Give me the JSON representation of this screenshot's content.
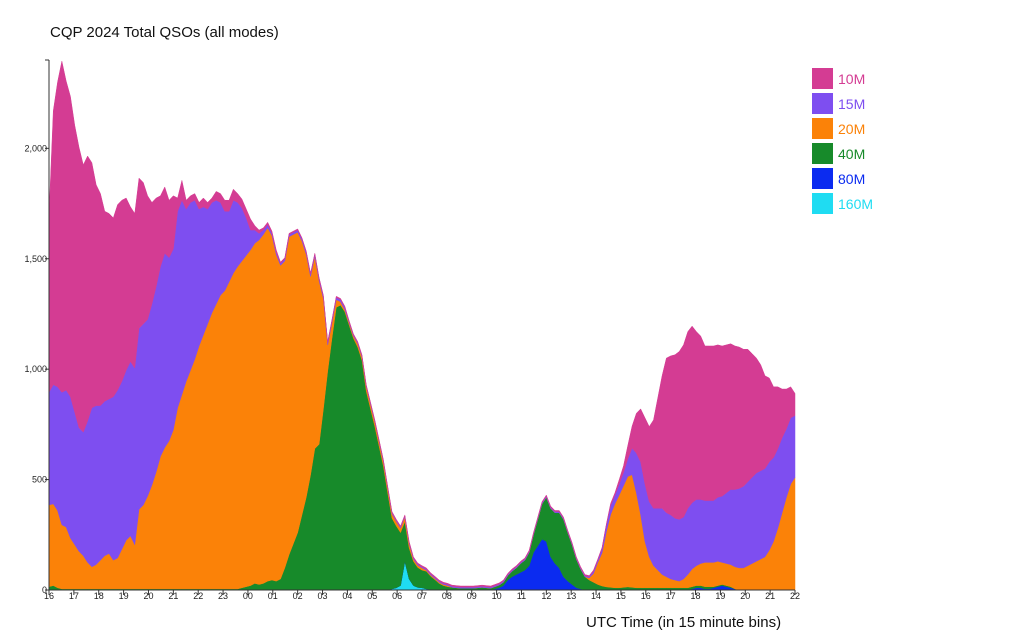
{
  "chart_data": {
    "type": "area",
    "stacked": true,
    "title": "CQP 2024 Total QSOs (all modes)",
    "xlabel": "UTC Time (in 15 minute bins)",
    "ylabel": "",
    "ylim": [
      0,
      2400
    ],
    "yticks": [
      0,
      500,
      1000,
      1500,
      2000
    ],
    "ytick_labels": [
      "0",
      "500",
      "1,000",
      "1,500",
      "2,000"
    ],
    "xtick_labels": [
      "16",
      "17",
      "18",
      "19",
      "20",
      "21",
      "22",
      "23",
      "00",
      "01",
      "02",
      "03",
      "04",
      "05",
      "06",
      "07",
      "08",
      "09",
      "10",
      "11",
      "12",
      "13",
      "14",
      "15",
      "16",
      "17",
      "18",
      "19",
      "20",
      "21",
      "22"
    ],
    "grid": false,
    "legend_position": "right",
    "series": [
      {
        "name": "160M",
        "color": "#1fdcf2",
        "values": [
          0,
          0,
          0,
          0,
          0,
          0,
          0,
          0,
          0,
          0,
          0,
          0,
          0,
          0,
          0,
          0,
          0,
          0,
          0,
          0,
          0,
          0,
          0,
          0,
          0,
          0,
          0,
          0,
          0,
          0,
          0,
          0,
          0,
          0,
          0,
          0,
          0,
          0,
          0,
          0,
          0,
          0,
          0,
          0,
          0,
          0,
          0,
          0,
          0,
          0,
          0,
          0,
          0,
          0,
          0,
          0,
          0,
          0,
          0,
          0,
          0,
          0,
          0,
          0,
          0,
          0,
          0,
          0,
          0,
          0,
          0,
          0,
          0,
          0,
          0,
          0,
          0,
          0,
          0,
          0,
          5,
          10,
          20,
          130,
          50,
          20,
          12,
          10,
          5,
          3,
          2,
          0,
          0,
          0,
          0,
          0,
          0,
          0,
          0,
          0,
          0,
          0,
          0,
          0,
          0,
          0,
          0,
          0,
          0,
          0,
          0,
          0,
          0,
          0,
          0,
          0,
          0,
          0,
          0,
          0,
          0,
          0,
          0,
          0,
          0,
          0,
          0,
          0,
          0,
          0,
          0,
          0,
          0,
          0,
          0,
          0,
          0,
          0,
          0,
          0,
          0,
          0,
          0,
          0,
          0,
          0,
          0,
          0,
          0,
          0,
          0,
          0,
          0,
          0,
          0,
          0,
          0,
          0,
          0,
          0,
          0,
          0,
          0,
          0,
          0,
          0,
          0,
          0,
          0,
          0,
          0,
          0,
          0,
          0,
          0
        ]
      },
      {
        "name": "80M",
        "color": "#0b2bf0",
        "values": [
          0,
          0,
          0,
          0,
          0,
          0,
          0,
          0,
          0,
          0,
          0,
          0,
          0,
          0,
          0,
          0,
          0,
          0,
          0,
          0,
          0,
          0,
          0,
          0,
          0,
          0,
          0,
          0,
          0,
          0,
          0,
          0,
          0,
          0,
          0,
          0,
          0,
          0,
          0,
          0,
          0,
          0,
          0,
          0,
          0,
          0,
          0,
          0,
          0,
          0,
          0,
          0,
          0,
          0,
          0,
          0,
          0,
          0,
          0,
          0,
          0,
          0,
          0,
          0,
          0,
          0,
          0,
          0,
          0,
          0,
          0,
          0,
          0,
          0,
          0,
          0,
          0,
          0,
          0,
          0,
          0,
          0,
          0,
          0,
          0,
          0,
          0,
          0,
          0,
          0,
          0,
          0,
          0,
          0,
          0,
          0,
          0,
          0,
          0,
          0,
          0,
          0,
          0,
          0,
          5,
          10,
          20,
          45,
          60,
          70,
          80,
          90,
          110,
          170,
          200,
          230,
          220,
          150,
          120,
          100,
          60,
          40,
          25,
          10,
          5,
          0,
          0,
          0,
          0,
          0,
          0,
          0,
          0,
          0,
          0,
          0,
          0,
          0,
          0,
          0,
          0,
          0,
          0,
          0,
          0,
          0,
          0,
          0,
          0,
          0,
          5,
          10,
          10,
          5,
          5,
          10,
          15,
          20,
          15,
          10,
          5,
          0,
          0,
          0,
          0,
          0,
          0,
          0,
          0,
          0,
          0,
          0,
          0,
          0,
          0,
          0,
          0,
          0,
          0,
          0,
          0,
          0,
          0,
          0,
          0,
          0,
          0,
          0,
          0,
          0,
          0,
          0,
          0,
          0,
          0,
          0,
          0,
          0,
          0,
          0,
          0,
          0,
          0,
          0,
          0,
          0,
          0,
          0,
          0,
          0,
          0,
          0
        ]
      },
      {
        "name": "40M",
        "color": "#178a2a",
        "values": [
          15,
          20,
          10,
          5,
          5,
          5,
          5,
          5,
          5,
          5,
          5,
          5,
          5,
          5,
          5,
          5,
          5,
          5,
          5,
          5,
          5,
          5,
          5,
          5,
          5,
          5,
          5,
          5,
          5,
          5,
          5,
          5,
          5,
          5,
          5,
          5,
          5,
          5,
          5,
          5,
          5,
          5,
          5,
          5,
          5,
          10,
          15,
          20,
          30,
          25,
          30,
          40,
          45,
          40,
          50,
          100,
          160,
          210,
          260,
          340,
          420,
          520,
          640,
          660,
          820,
          990,
          1140,
          1280,
          1290,
          1260,
          1200,
          1140,
          1100,
          1040,
          900,
          820,
          740,
          650,
          560,
          440,
          320,
          280,
          240,
          180,
          140,
          110,
          90,
          80,
          80,
          60,
          45,
          30,
          20,
          15,
          12,
          10,
          8,
          8,
          8,
          8,
          10,
          12,
          10,
          8,
          10,
          12,
          15,
          20,
          25,
          30,
          40,
          45,
          60,
          80,
          120,
          160,
          200,
          220,
          230,
          250,
          260,
          220,
          180,
          130,
          90,
          60,
          45,
          35,
          25,
          18,
          14,
          12,
          10,
          10,
          12,
          14,
          12,
          10,
          10,
          10,
          10,
          10,
          10,
          10,
          10,
          10,
          10,
          10,
          10,
          10,
          10,
          10,
          10,
          10,
          10,
          5,
          5,
          5,
          5,
          5,
          0,
          0,
          0,
          0,
          0,
          0,
          0,
          0,
          0,
          0,
          0
        ]
      },
      {
        "name": "20M",
        "color": "#fb8208",
        "values": [
          370,
          370,
          350,
          290,
          280,
          230,
          200,
          170,
          150,
          120,
          100,
          110,
          130,
          150,
          160,
          130,
          140,
          180,
          220,
          240,
          200,
          360,
          380,
          420,
          470,
          530,
          600,
          640,
          670,
          720,
          820,
          880,
          940,
          990,
          1040,
          1100,
          1150,
          1200,
          1250,
          1290,
          1330,
          1350,
          1390,
          1430,
          1460,
          1480,
          1500,
          1520,
          1540,
          1560,
          1580,
          1600,
          1560,
          1480,
          1420,
          1390,
          1440,
          1400,
          1360,
          1240,
          1100,
          900,
          870,
          740,
          500,
          120,
          70,
          35,
          15,
          10,
          10,
          10,
          15,
          15,
          20,
          20,
          20,
          20,
          20,
          20,
          20,
          20,
          20,
          20,
          20,
          10,
          10,
          10,
          5,
          5,
          5,
          5,
          5,
          5,
          0,
          0,
          0,
          0,
          0,
          0,
          0,
          0,
          0,
          0,
          0,
          0,
          0,
          0,
          0,
          0,
          0,
          0,
          0,
          0,
          0,
          0,
          0,
          0,
          0,
          0,
          0,
          0,
          0,
          0,
          0,
          0,
          10,
          40,
          100,
          150,
          250,
          330,
          380,
          420,
          460,
          500,
          510,
          430,
          330,
          210,
          140,
          100,
          80,
          60,
          50,
          40,
          35,
          30,
          40,
          60,
          80,
          90,
          100,
          110,
          110,
          110,
          110,
          100,
          100,
          100,
          100,
          100,
          100,
          110,
          120,
          130,
          140,
          150,
          180,
          220,
          280,
          350,
          420,
          480,
          510,
          550,
          590,
          640,
          660,
          650,
          580,
          400,
          150,
          0
        ]
      },
      {
        "name": "15M",
        "color": "#7e4ef0",
        "values": [
          510,
          540,
          560,
          600,
          620,
          640,
          600,
          560,
          560,
          640,
          720,
          720,
          700,
          700,
          700,
          740,
          760,
          760,
          770,
          790,
          800,
          820,
          820,
          800,
          820,
          840,
          860,
          880,
          830,
          820,
          890,
          880,
          780,
          760,
          720,
          620,
          580,
          520,
          500,
          470,
          420,
          360,
          320,
          330,
          290,
          240,
          170,
          90,
          60,
          30,
          20,
          15,
          10,
          10,
          10,
          10,
          10,
          10,
          10,
          10,
          10,
          10,
          10,
          10,
          10,
          10,
          10,
          10,
          10,
          10,
          5,
          5,
          5,
          5,
          5,
          5,
          5,
          5,
          5,
          5,
          5,
          5,
          5,
          5,
          5,
          5,
          5,
          5,
          5,
          5,
          5,
          5,
          5,
          5,
          5,
          5,
          5,
          5,
          5,
          5,
          5,
          5,
          5,
          5,
          5,
          5,
          5,
          5,
          5,
          5,
          5,
          5,
          5,
          5,
          5,
          5,
          5,
          5,
          5,
          5,
          5,
          5,
          5,
          5,
          5,
          5,
          5,
          10,
          10,
          20,
          30,
          40,
          40,
          50,
          60,
          80,
          120,
          180,
          240,
          260,
          250,
          260,
          280,
          300,
          290,
          290,
          280,
          280,
          280,
          300,
          300,
          300,
          290,
          280,
          280,
          280,
          290,
          300,
          320,
          340,
          350,
          360,
          370,
          380,
          390,
          400,
          400,
          400,
          400,
          380,
          360,
          340,
          310,
          300,
          280,
          260,
          200,
          150,
          10
        ]
      },
      {
        "name": "10M",
        "color": "#d43c93",
        "values": [
          800,
          1240,
          1380,
          1500,
          1400,
          1360,
          1300,
          1270,
          1210,
          1200,
          1110,
          1000,
          960,
          860,
          840,
          810,
          840,
          820,
          780,
          700,
          700,
          680,
          640,
          560,
          460,
          400,
          320,
          300,
          260,
          240,
          60,
          90,
          40,
          30,
          30,
          30,
          40,
          30,
          20,
          40,
          40,
          50,
          50,
          50,
          40,
          40,
          40,
          50,
          20,
          15,
          10,
          10,
          10,
          10,
          5,
          5,
          5,
          5,
          5,
          5,
          5,
          5,
          5,
          5,
          5,
          5,
          5,
          5,
          5,
          5,
          5,
          5,
          5,
          5,
          5,
          5,
          5,
          5,
          5,
          5,
          5,
          5,
          5,
          5,
          5,
          5,
          5,
          5,
          5,
          5,
          5,
          5,
          5,
          5,
          5,
          5,
          5,
          5,
          5,
          5,
          5,
          5,
          5,
          5,
          5,
          5,
          5,
          5,
          5,
          5,
          5,
          5,
          5,
          5,
          5,
          5,
          5,
          5,
          5,
          5,
          5,
          5,
          5,
          5,
          5,
          5,
          5,
          5,
          5,
          5,
          5,
          10,
          10,
          20,
          30,
          60,
          100,
          180,
          240,
          300,
          340,
          400,
          500,
          600,
          700,
          720,
          740,
          760,
          780,
          800,
          800,
          760,
          740,
          700,
          700,
          700,
          690,
          680,
          670,
          660,
          650,
          640,
          620,
          600,
          560,
          520,
          480,
          420,
          380,
          320,
          280,
          220,
          180,
          140,
          100,
          80,
          40,
          10,
          0
        ]
      }
    ]
  }
}
